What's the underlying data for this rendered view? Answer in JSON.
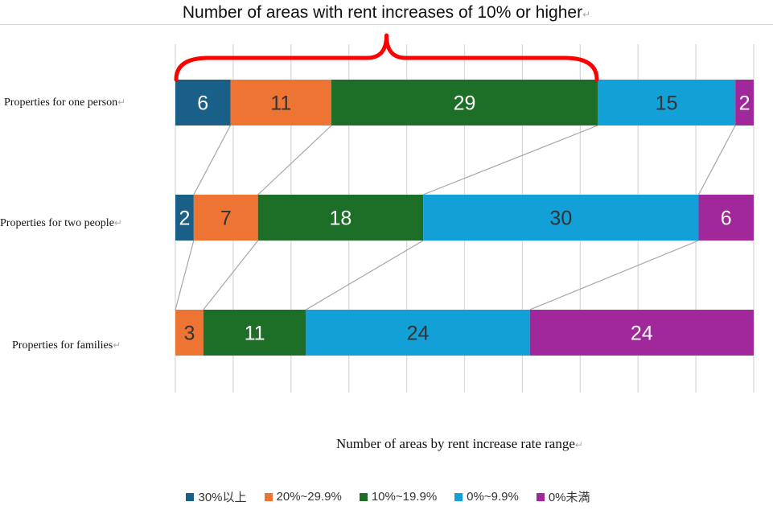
{
  "title": "Number of areas with rent increases of 10% or higher",
  "chart_data": {
    "type": "bar",
    "orientation": "horizontal",
    "stacked": true,
    "categories": [
      "Properties for one person",
      "Properties for two people",
      "Properties for families"
    ],
    "series": [
      {
        "name": "30%以上",
        "color": "#1a5f87",
        "values": [
          6,
          2,
          0
        ]
      },
      {
        "name": "20%~29.9%",
        "color": "#ed7432",
        "values": [
          11,
          7,
          3
        ]
      },
      {
        "name": "10%~19.9%",
        "color": "#1d6e27",
        "values": [
          29,
          18,
          11
        ]
      },
      {
        "name": "0%~9.9%",
        "color": "#12a0d7",
        "values": [
          15,
          30,
          24
        ]
      },
      {
        "name": "0%未満",
        "color": "#a0289a",
        "values": [
          2,
          6,
          24
        ]
      }
    ],
    "xlabel": "Number of areas by rent increase rate range",
    "grid": true,
    "legend": "bottom",
    "annotation": "red brace over the 30%以上, 20%~29.9% and 10%~19.9% segments of Properties for one person"
  },
  "label_text_colors": [
    "#ffffff",
    "#333333",
    "#ffffff",
    "#333333",
    "#ffffff"
  ],
  "brace_color": "#ff0000",
  "paragraph_mark": "↵"
}
